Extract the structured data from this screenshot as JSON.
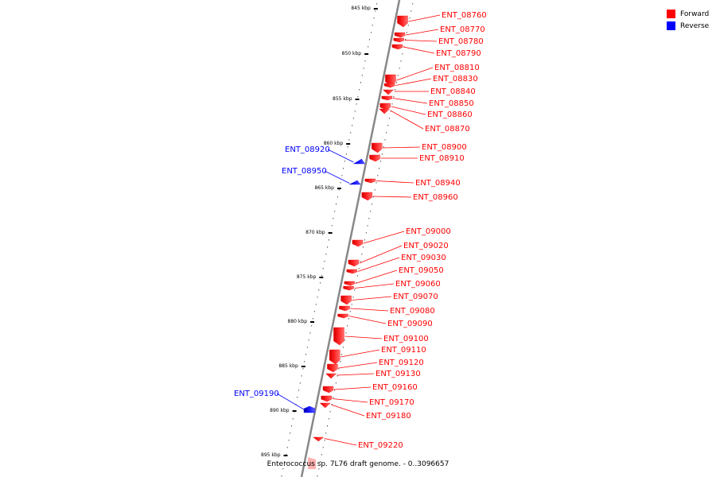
{
  "legend": [
    {
      "label": "Forward",
      "color": "#ff0000"
    },
    {
      "label": "Reverse",
      "color": "#0000ff"
    }
  ],
  "caption": "Enterococcus sp. 7L76 draft genome. - 0..3096657",
  "colors": {
    "forward": "#ff0000",
    "reverse": "#0000ff",
    "backbone": "#888888",
    "ticks": "#000000"
  },
  "tick_labels": [
    "845 kbp",
    "850 kbp",
    "855 kbp",
    "860 kbp",
    "865 kbp",
    "870 kbp",
    "875 kbp",
    "880 kbp",
    "885 kbp",
    "890 kbp",
    "895 kbp"
  ],
  "genes": [
    {
      "label": "ENT_08760",
      "strand": "forward"
    },
    {
      "label": "ENT_08770",
      "strand": "forward"
    },
    {
      "label": "ENT_08780",
      "strand": "forward"
    },
    {
      "label": "ENT_08790",
      "strand": "forward"
    },
    {
      "label": "ENT_08810",
      "strand": "forward"
    },
    {
      "label": "ENT_08830",
      "strand": "forward"
    },
    {
      "label": "ENT_08840",
      "strand": "forward"
    },
    {
      "label": "ENT_08850",
      "strand": "forward"
    },
    {
      "label": "ENT_08860",
      "strand": "forward"
    },
    {
      "label": "ENT_08870",
      "strand": "forward"
    },
    {
      "label": "ENT_08900",
      "strand": "forward"
    },
    {
      "label": "ENT_08910",
      "strand": "forward"
    },
    {
      "label": "ENT_08920",
      "strand": "reverse"
    },
    {
      "label": "ENT_08950",
      "strand": "reverse"
    },
    {
      "label": "ENT_08940",
      "strand": "forward"
    },
    {
      "label": "ENT_08960",
      "strand": "forward"
    },
    {
      "label": "ENT_09000",
      "strand": "forward"
    },
    {
      "label": "ENT_09020",
      "strand": "forward"
    },
    {
      "label": "ENT_09030",
      "strand": "forward"
    },
    {
      "label": "ENT_09050",
      "strand": "forward"
    },
    {
      "label": "ENT_09060",
      "strand": "forward"
    },
    {
      "label": "ENT_09070",
      "strand": "forward"
    },
    {
      "label": "ENT_09080",
      "strand": "forward"
    },
    {
      "label": "ENT_09090",
      "strand": "forward"
    },
    {
      "label": "ENT_09100",
      "strand": "forward"
    },
    {
      "label": "ENT_09110",
      "strand": "forward"
    },
    {
      "label": "ENT_09120",
      "strand": "forward"
    },
    {
      "label": "ENT_09130",
      "strand": "forward"
    },
    {
      "label": "ENT_09160",
      "strand": "forward"
    },
    {
      "label": "ENT_09170",
      "strand": "forward"
    },
    {
      "label": "ENT_09180",
      "strand": "forward"
    },
    {
      "label": "ENT_09190",
      "strand": "reverse"
    },
    {
      "label": "ENT_09220",
      "strand": "forward"
    }
  ]
}
